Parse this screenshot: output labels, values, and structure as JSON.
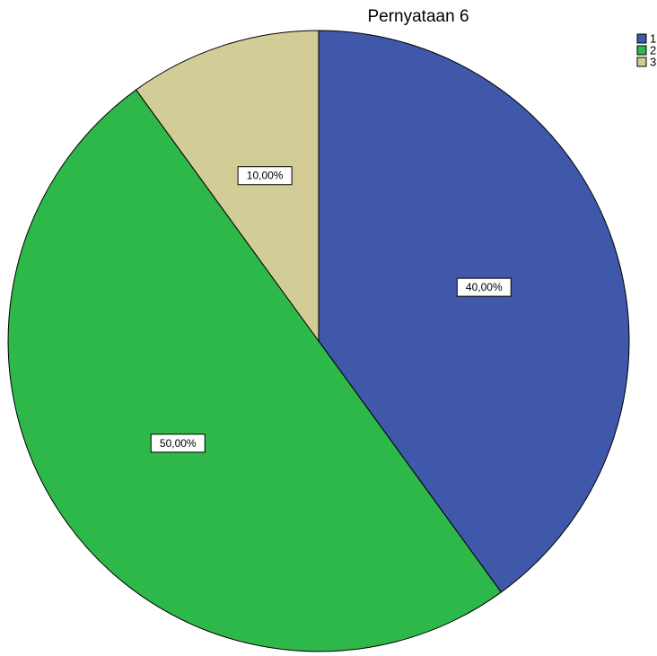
{
  "chart_data": {
    "type": "pie",
    "title": "Pernyataan 6",
    "categories": [
      "1",
      "2",
      "3"
    ],
    "values": [
      40,
      50,
      10
    ],
    "data_labels": [
      "40,00%",
      "50,00%",
      "10,00%"
    ],
    "colors": [
      "#3f58aa",
      "#2eb84a",
      "#d2cc97"
    ],
    "start_angle_deg": 0,
    "direction": "clockwise",
    "legend_position": "top-right"
  }
}
